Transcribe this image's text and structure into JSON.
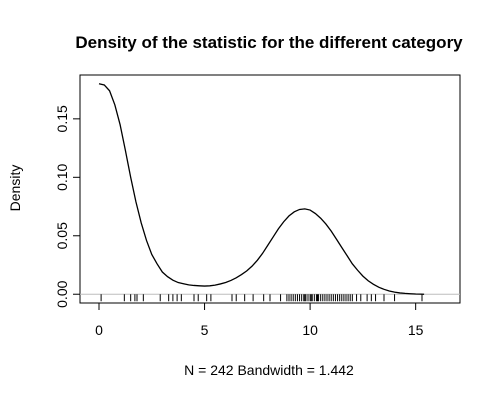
{
  "chart_data": {
    "type": "line",
    "title": "Density of the statistic for the different category",
    "xlabel": "N = 242   Bandwidth = 1.442",
    "ylabel": "Density",
    "xlim": [
      -0.9,
      17.1
    ],
    "ylim": [
      -0.0075,
      0.1875
    ],
    "x_ticks": [
      0,
      5,
      10,
      15
    ],
    "y_ticks": [
      0.0,
      0.05,
      0.1,
      0.15
    ],
    "x_tick_labels": [
      "0",
      "5",
      "10",
      "15"
    ],
    "y_tick_labels": [
      "0.00",
      "0.05",
      "0.10",
      "0.15"
    ],
    "grid": false,
    "baseline_y": 0,
    "series": [
      {
        "x": [
          0.0,
          0.25,
          0.5,
          0.75,
          1.0,
          1.25,
          1.5,
          1.75,
          2.0,
          2.25,
          2.5,
          2.75,
          3.0,
          3.25,
          3.5,
          3.75,
          4.0,
          4.25,
          4.5,
          4.75,
          5.0,
          5.25,
          5.5,
          5.75,
          6.0,
          6.25,
          6.5,
          6.75,
          7.0,
          7.25,
          7.5,
          7.75,
          8.0,
          8.25,
          8.5,
          8.75,
          9.0,
          9.25,
          9.5,
          9.75,
          10.0,
          10.25,
          10.5,
          10.75,
          11.0,
          11.25,
          11.5,
          11.75,
          12.0,
          12.25,
          12.5,
          12.75,
          13.0,
          13.25,
          13.5,
          13.75,
          14.0,
          14.25,
          14.5,
          14.75,
          15.0,
          15.25,
          15.4
        ],
        "values": [
          0.18,
          0.179,
          0.174,
          0.162,
          0.145,
          0.123,
          0.1,
          0.079,
          0.061,
          0.046,
          0.034,
          0.026,
          0.019,
          0.015,
          0.012,
          0.01,
          0.009,
          0.008,
          0.0075,
          0.0072,
          0.007,
          0.0072,
          0.0078,
          0.0088,
          0.01,
          0.0118,
          0.014,
          0.0168,
          0.02,
          0.024,
          0.029,
          0.035,
          0.042,
          0.049,
          0.056,
          0.062,
          0.067,
          0.0705,
          0.0725,
          0.073,
          0.072,
          0.069,
          0.065,
          0.06,
          0.054,
          0.047,
          0.04,
          0.033,
          0.026,
          0.0205,
          0.0155,
          0.0115,
          0.0085,
          0.006,
          0.0042,
          0.0028,
          0.0018,
          0.0011,
          0.0007,
          0.0004,
          0.0002,
          0.0001,
          0.0
        ]
      }
    ],
    "rug_x": [
      0.1,
      1.2,
      1.5,
      1.7,
      1.8,
      2.1,
      2.9,
      3.3,
      3.5,
      3.7,
      3.9,
      4.5,
      4.7,
      5.1,
      5.3,
      6.3,
      6.5,
      6.9,
      7.3,
      7.8,
      8.1,
      8.6,
      8.9,
      9.0,
      9.1,
      9.2,
      9.3,
      9.4,
      9.5,
      9.6,
      9.7,
      9.75,
      9.8,
      9.9,
      10.0,
      10.05,
      10.1,
      10.2,
      10.3,
      10.35,
      10.4,
      10.5,
      10.6,
      10.7,
      10.8,
      10.9,
      11.0,
      11.1,
      11.2,
      11.3,
      11.4,
      11.5,
      11.6,
      11.7,
      11.8,
      11.9,
      12.0,
      12.2,
      12.4,
      12.7,
      12.9,
      13.1,
      13.5,
      14.0,
      15.3
    ]
  }
}
